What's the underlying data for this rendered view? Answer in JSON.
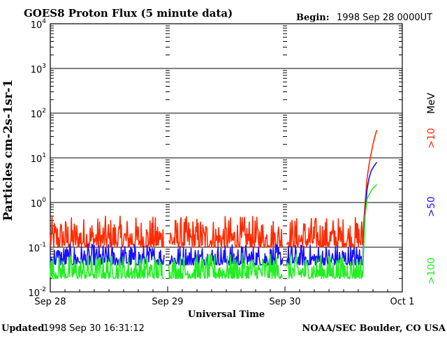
{
  "chart_data": {
    "type": "line",
    "title": "GOES8 Proton Flux (5 minute data)",
    "begin_label": "Begin:",
    "begin_value": "1998 Sep 28 0000UT",
    "ylabel": "Particles cm-2s-1sr-1",
    "xlabel": "Universal Time",
    "yscale": "log",
    "ylim": [
      0.01,
      10000
    ],
    "y_ticks": [
      {
        "base": "10",
        "exp": "4",
        "value": 10000
      },
      {
        "base": "10",
        "exp": "3",
        "value": 1000
      },
      {
        "base": "10",
        "exp": "2",
        "value": 100
      },
      {
        "base": "10",
        "exp": "1",
        "value": 10
      },
      {
        "base": "10",
        "exp": "0",
        "value": 1
      },
      {
        "base": "10",
        "exp": "-1",
        "value": 0.1
      },
      {
        "base": "10",
        "exp": "-2",
        "value": 0.01
      }
    ],
    "x_ticks": [
      {
        "label": "Sep 28",
        "hour": 0
      },
      {
        "label": "Sep 29",
        "hour": 24
      },
      {
        "label": "Sep 30",
        "hour": 48
      },
      {
        "label": "Oct 1",
        "hour": 72
      }
    ],
    "grid": true,
    "series": [
      {
        "name": ">10",
        "color": "#ff2a00",
        "baseline_range": [
          0.1,
          0.5
        ],
        "event_points": [
          [
            64.0,
            0.25
          ],
          [
            64.4,
            1.0
          ],
          [
            64.8,
            3.5
          ],
          [
            65.2,
            7.0
          ],
          [
            65.6,
            12.0
          ],
          [
            66.0,
            20.0
          ],
          [
            66.4,
            30.0
          ],
          [
            66.8,
            42.0
          ]
        ]
      },
      {
        "name": ">50",
        "color": "#1a10ff",
        "baseline_range": [
          0.04,
          0.12
        ],
        "event_points": [
          [
            64.0,
            0.08
          ],
          [
            64.4,
            0.6
          ],
          [
            64.8,
            2.0
          ],
          [
            65.2,
            3.5
          ],
          [
            65.6,
            5.0
          ],
          [
            66.0,
            6.0
          ],
          [
            66.4,
            7.0
          ],
          [
            66.8,
            8.0
          ]
        ]
      },
      {
        "name": ">100",
        "color": "#22ee22",
        "baseline_range": [
          0.02,
          0.07
        ],
        "event_points": [
          [
            64.0,
            0.05
          ],
          [
            64.4,
            0.5
          ],
          [
            64.8,
            1.2
          ],
          [
            65.2,
            1.5
          ],
          [
            65.6,
            1.8
          ],
          [
            66.0,
            2.1
          ],
          [
            66.4,
            2.3
          ],
          [
            66.8,
            2.5
          ]
        ]
      }
    ],
    "legend": {
      "unit_label": "MeV",
      "items": [
        {
          "label": ">10",
          "color": "#ff2a00"
        },
        {
          "label": ">50",
          "color": "#1a10ff"
        },
        {
          "label": ">100",
          "color": "#22ee22"
        }
      ]
    }
  },
  "footer": {
    "updated_label": "Updated",
    "updated_value": "1998 Sep 30 16:31:12",
    "credit": "NOAA/SEC Boulder, CO USA"
  }
}
